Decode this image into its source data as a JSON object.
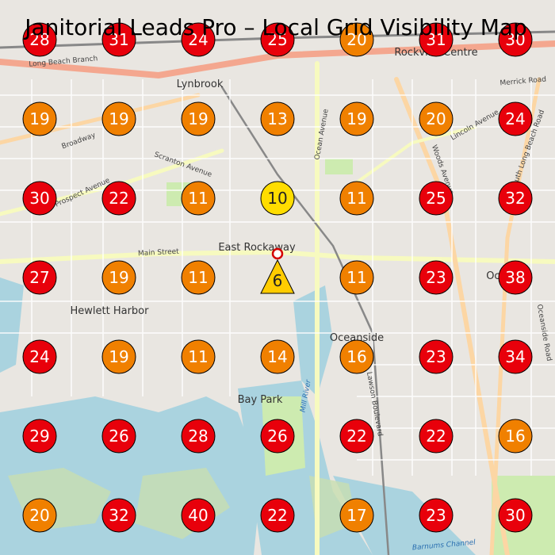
{
  "title": "Janitorial Leads Pro – Local Grid Visibility Map",
  "grid": {
    "rows": [
      [
        28,
        31,
        24,
        25,
        20,
        31,
        30
      ],
      [
        19,
        19,
        19,
        13,
        19,
        20,
        24
      ],
      [
        30,
        22,
        11,
        10,
        11,
        25,
        32
      ],
      [
        27,
        19,
        11,
        6,
        11,
        23,
        38
      ],
      [
        24,
        19,
        11,
        14,
        16,
        23,
        34
      ],
      [
        29,
        26,
        28,
        26,
        22,
        22,
        16
      ],
      [
        20,
        32,
        40,
        22,
        17,
        23,
        30
      ]
    ],
    "colors": [
      [
        "#e8000b",
        "#e8000b",
        "#e8000b",
        "#e8000b",
        "#f08000",
        "#e8000b",
        "#e8000b"
      ],
      [
        "#f08000",
        "#f08000",
        "#f08000",
        "#f08000",
        "#f08000",
        "#f08000",
        "#e8000b"
      ],
      [
        "#e8000b",
        "#e8000b",
        "#f08000",
        "#ffdd00",
        "#f08000",
        "#e8000b",
        "#e8000b"
      ],
      [
        "#e8000b",
        "#f08000",
        "#f08000",
        "#ffcc00",
        "#f08000",
        "#e8000b",
        "#e8000b"
      ],
      [
        "#e8000b",
        "#f08000",
        "#f08000",
        "#f08000",
        "#f08000",
        "#e8000b",
        "#e8000b"
      ],
      [
        "#e8000b",
        "#e8000b",
        "#e8000b",
        "#e8000b",
        "#e8000b",
        "#e8000b",
        "#f08000"
      ],
      [
        "#f08000",
        "#e8000b",
        "#e8000b",
        "#e8000b",
        "#f08000",
        "#e8000b",
        "#e8000b"
      ]
    ]
  },
  "map_labels": {
    "places": [
      "Lynbrook",
      "East Rockaway",
      "Hewlett Harbor",
      "Rockville Centre",
      "Oceanside",
      "Bay Park",
      "Ocean"
    ],
    "streets": [
      "Long Beach Branch",
      "Merrick Road",
      "Ocean Avenue",
      "Broadway",
      "Main Street",
      "Scranton Avenue",
      "Lincoln Avenue",
      "Woods Avenue",
      "Lawson Boulevard",
      "Prospect Avenue",
      "Oceanside Road",
      "South Long Beach Road"
    ],
    "water": [
      "Mill River",
      "Barnums Channel"
    ]
  }
}
